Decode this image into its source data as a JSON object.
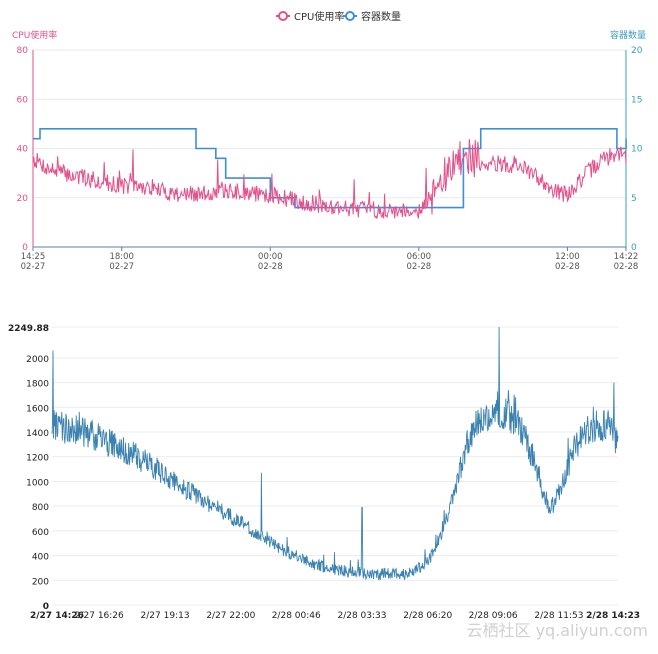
{
  "chart_data": [
    {
      "type": "line",
      "legend": {
        "placement": "top-center",
        "entries": [
          "CPU使用率",
          "容器数量"
        ]
      },
      "colors": {
        "cpu": "#e3508a",
        "containers": "#3d8fd9",
        "left_axis": "#e3508a",
        "right_axis": "#39a0c0"
      },
      "y_left": {
        "label": "CPU使用率",
        "ylim": [
          0,
          80
        ],
        "ticks": [
          "0",
          "20",
          "40",
          "60",
          "80"
        ]
      },
      "y_right": {
        "label": "容器数量",
        "ylim": [
          0,
          20
        ],
        "ticks": [
          "0",
          "5",
          "10",
          "15",
          "20"
        ]
      },
      "x_range_hours": [
        14.4167,
        38.3667
      ],
      "x_ticks": [
        {
          "line1": "14:25",
          "line2": "02-27"
        },
        {
          "line1": "18:00",
          "line2": "02-27"
        },
        {
          "line1": "00:00",
          "line2": "02-28"
        },
        {
          "line1": "06:00",
          "line2": "02-28"
        },
        {
          "line1": "12:00",
          "line2": "02-28"
        },
        {
          "line1": "14:22",
          "line2": "02-28"
        }
      ],
      "grid": true,
      "series": [
        {
          "name": "CPU使用率",
          "key": "cpu",
          "axis": "left",
          "x": [
            14.42,
            15.0,
            16.0,
            17.0,
            18.0,
            19.0,
            20.0,
            21.0,
            22.0,
            23.0,
            24.0,
            25.0,
            26.0,
            27.0,
            28.0,
            29.0,
            30.0,
            30.5,
            31.0,
            31.5,
            32.0,
            32.5,
            33.0,
            34.0,
            35.0,
            35.5,
            36.0,
            36.5,
            37.0,
            37.5,
            38.0,
            38.37
          ],
          "values": [
            36,
            32,
            29,
            27,
            25,
            24,
            22,
            21,
            23,
            22,
            21,
            19,
            17,
            16,
            15,
            15,
            15,
            20,
            28,
            34,
            37,
            35,
            34,
            33,
            27,
            23,
            21,
            27,
            32,
            36,
            38,
            37
          ]
        },
        {
          "name": "容器数量",
          "key": "containers",
          "axis": "right",
          "x": [
            14.42,
            14.7,
            20.0,
            21.0,
            21.8,
            22.2,
            24.0,
            25.0,
            31.0,
            31.8,
            32.5,
            36.0,
            38.0,
            38.37
          ],
          "values": [
            11,
            12,
            12,
            10,
            9,
            7,
            5,
            4,
            4,
            10,
            12,
            12,
            10,
            11
          ]
        }
      ]
    },
    {
      "type": "line",
      "colors": {
        "line": "#3c82b0"
      },
      "ylim": [
        0,
        2249.88
      ],
      "y_ticks": [
        "0",
        "200",
        "400",
        "600",
        "800",
        "1000",
        "1200",
        "1400",
        "1600",
        "1800",
        "2000",
        "2249.88"
      ],
      "y_tick_values": [
        0,
        200,
        400,
        600,
        800,
        1000,
        1200,
        1400,
        1600,
        1800,
        2000,
        2249.88
      ],
      "x_range_hours": [
        14.433,
        38.383
      ],
      "x_ticks": [
        "2/27 14:26",
        "2/27 16:26",
        "2/27 19:13",
        "2/27 22:00",
        "2/28 00:46",
        "2/28 03:33",
        "2/28 06:20",
        "2/28 09:06",
        "2/28 11:53",
        "2/28 14:23"
      ],
      "x_tick_hours": [
        14.433,
        16.433,
        19.217,
        22.0,
        24.767,
        27.55,
        30.333,
        33.1,
        35.883,
        38.383
      ],
      "grid": true,
      "series": [
        {
          "key": "requests",
          "x": [
            14.43,
            15.0,
            16.0,
            17.0,
            18.0,
            19.0,
            20.0,
            21.0,
            22.0,
            23.0,
            24.0,
            25.0,
            26.0,
            27.0,
            28.0,
            29.0,
            29.5,
            30.0,
            30.5,
            31.0,
            31.5,
            32.0,
            32.5,
            33.0,
            33.5,
            34.0,
            34.5,
            35.0,
            35.5,
            36.0,
            36.5,
            37.0,
            37.5,
            38.0,
            38.38
          ],
          "values": [
            1450,
            1430,
            1390,
            1300,
            1200,
            1080,
            950,
            830,
            720,
            590,
            470,
            370,
            300,
            270,
            250,
            250,
            260,
            300,
            400,
            620,
            950,
            1300,
            1500,
            1550,
            1560,
            1500,
            1350,
            1050,
            760,
            950,
            1250,
            1400,
            1450,
            1450,
            1300
          ]
        }
      ],
      "spikes": [
        {
          "x": 14.48,
          "value": 2060
        },
        {
          "x": 23.3,
          "value": 1070
        },
        {
          "x": 27.55,
          "value": 790
        },
        {
          "x": 33.35,
          "value": 2249
        },
        {
          "x": 38.2,
          "value": 1800
        }
      ]
    }
  ],
  "watermark": "云栖社区 yq.aliyun.com"
}
